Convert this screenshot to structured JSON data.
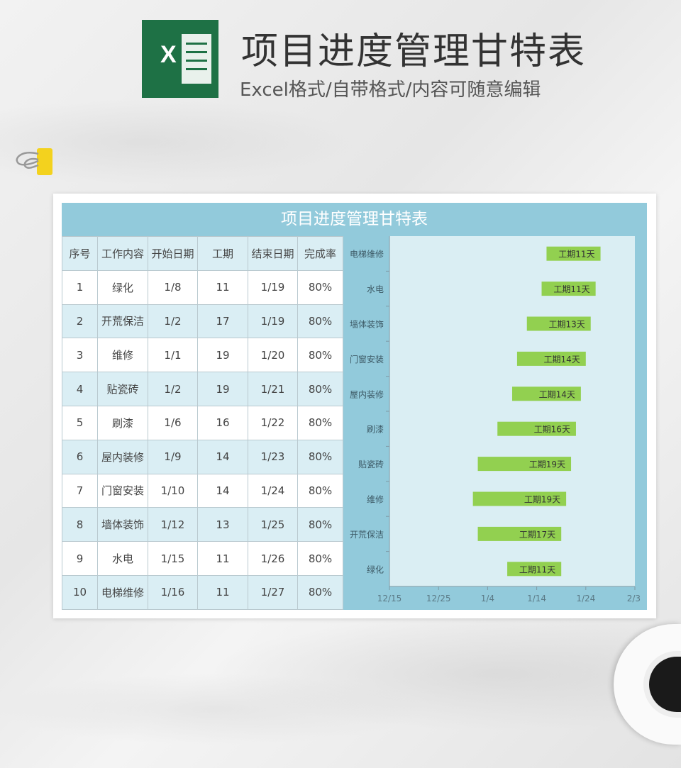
{
  "header": {
    "title": "项目进度管理甘特表",
    "subtitle": "Excel格式/自带格式/内容可随意编辑",
    "logo_letter": "X"
  },
  "sheet": {
    "title": "项目进度管理甘特表",
    "columns": [
      "序号",
      "工作内容",
      "开始日期",
      "工期",
      "结束日期",
      "完成率"
    ],
    "rows": [
      [
        "1",
        "绿化",
        "1/8",
        "11",
        "1/19",
        "80%"
      ],
      [
        "2",
        "开荒保洁",
        "1/2",
        "17",
        "1/19",
        "80%"
      ],
      [
        "3",
        "维修",
        "1/1",
        "19",
        "1/20",
        "80%"
      ],
      [
        "4",
        "贴瓷砖",
        "1/2",
        "19",
        "1/21",
        "80%"
      ],
      [
        "5",
        "刷漆",
        "1/6",
        "16",
        "1/22",
        "80%"
      ],
      [
        "6",
        "屋内装修",
        "1/9",
        "14",
        "1/23",
        "80%"
      ],
      [
        "7",
        "门窗安装",
        "1/10",
        "14",
        "1/24",
        "80%"
      ],
      [
        "8",
        "墙体装饰",
        "1/12",
        "13",
        "1/25",
        "80%"
      ],
      [
        "9",
        "水电",
        "1/15",
        "11",
        "1/26",
        "80%"
      ],
      [
        "10",
        "电梯维修",
        "1/16",
        "11",
        "1/27",
        "80%"
      ]
    ]
  },
  "chart_data": {
    "type": "gantt-bar",
    "categories": [
      "电梯维修",
      "水电",
      "墙体装饰",
      "门窗安装",
      "屋内装修",
      "刷漆",
      "贴瓷砖",
      "维修",
      "开荒保洁",
      "绿化"
    ],
    "start": [
      "1/16",
      "1/15",
      "1/12",
      "1/10",
      "1/9",
      "1/6",
      "1/2",
      "1/1",
      "1/2",
      "1/8"
    ],
    "end": [
      "1/27",
      "1/26",
      "1/25",
      "1/24",
      "1/23",
      "1/22",
      "1/21",
      "1/20",
      "1/19",
      "1/19"
    ],
    "data_labels": [
      "工期11天",
      "工期11天",
      "工期13天",
      "工期14天",
      "工期14天",
      "工期16天",
      "工期19天",
      "工期19天",
      "工期17天",
      "工期11天"
    ],
    "x_ticks": [
      "12/15",
      "12/25",
      "1/4",
      "1/14",
      "1/24",
      "2/3"
    ],
    "xlim": [
      "12/15",
      "2/3"
    ],
    "grid": false,
    "colors": {
      "bar": "#92d050",
      "plot_bg": "#daeef3",
      "panel": "#92cadb"
    }
  }
}
